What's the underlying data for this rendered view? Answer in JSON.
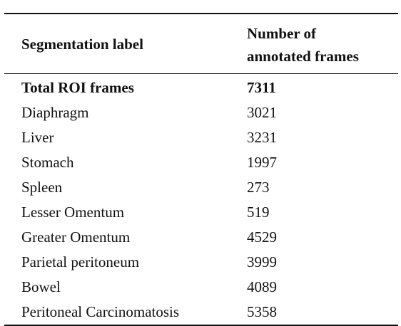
{
  "caption_fragment": "",
  "table": {
    "headers": {
      "label": "Segmentation label",
      "count_line1": "Number of",
      "count_line2": "annotated frames"
    },
    "rows": [
      {
        "label": "Total ROI frames",
        "value": "7311"
      },
      {
        "label": "Diaphragm",
        "value": "3021"
      },
      {
        "label": "Liver",
        "value": "3231"
      },
      {
        "label": "Stomach",
        "value": "1997"
      },
      {
        "label": "Spleen",
        "value": "273"
      },
      {
        "label": "Lesser Omentum",
        "value": "519"
      },
      {
        "label": "Greater Omentum",
        "value": "4529"
      },
      {
        "label": "Parietal peritoneum",
        "value": "3999"
      },
      {
        "label": "Bowel",
        "value": "4089"
      },
      {
        "label": "Peritoneal Carcinomatosis",
        "value": "5358"
      }
    ]
  }
}
